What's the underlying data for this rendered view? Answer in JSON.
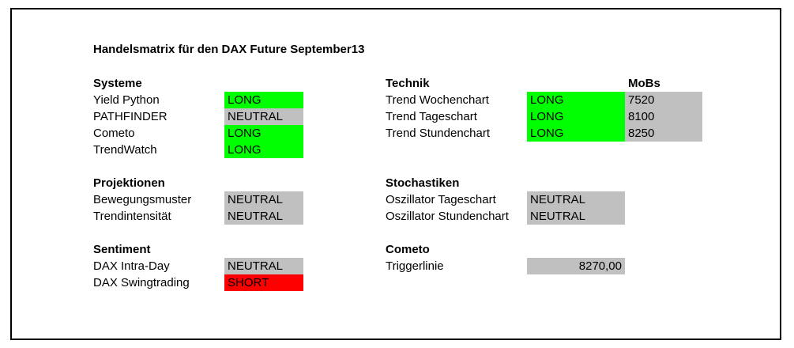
{
  "title": "Handelsmatrix für den DAX Future September13",
  "colors": {
    "long": "#00ff00",
    "neutral": "#c0c0c0",
    "short": "#ff0000"
  },
  "systeme": {
    "heading": "Systeme",
    "rows": [
      {
        "label": "Yield Python",
        "signal": "LONG"
      },
      {
        "label": "PATHFINDER",
        "signal": "NEUTRAL"
      },
      {
        "label": "Cometo",
        "signal": "LONG"
      },
      {
        "label": "TrendWatch",
        "signal": "LONG"
      }
    ]
  },
  "projektionen": {
    "heading": "Projektionen",
    "rows": [
      {
        "label": "Bewegungsmuster",
        "signal": "NEUTRAL"
      },
      {
        "label": "Trendintensität",
        "signal": "NEUTRAL"
      }
    ]
  },
  "sentiment": {
    "heading": "Sentiment",
    "rows": [
      {
        "label": "DAX Intra-Day",
        "signal": "NEUTRAL"
      },
      {
        "label": "DAX Swingtrading",
        "signal": "SHORT"
      }
    ]
  },
  "technik": {
    "heading": "Technik",
    "mobs_heading": "MoBs",
    "rows": [
      {
        "label": "Trend Wochenchart",
        "signal": "LONG",
        "mobs": "7520"
      },
      {
        "label": "Trend Tageschart",
        "signal": "LONG",
        "mobs": "8100"
      },
      {
        "label": "Trend Stundenchart",
        "signal": "LONG",
        "mobs": "8250"
      }
    ]
  },
  "stochastiken": {
    "heading": "Stochastiken",
    "rows": [
      {
        "label": "Oszillator Tageschart",
        "signal": "NEUTRAL"
      },
      {
        "label": "Oszillator Stundenchart",
        "signal": "NEUTRAL"
      }
    ]
  },
  "cometo": {
    "heading": "Cometo",
    "rows": [
      {
        "label": "Triggerlinie",
        "value": "8270,00"
      }
    ]
  }
}
